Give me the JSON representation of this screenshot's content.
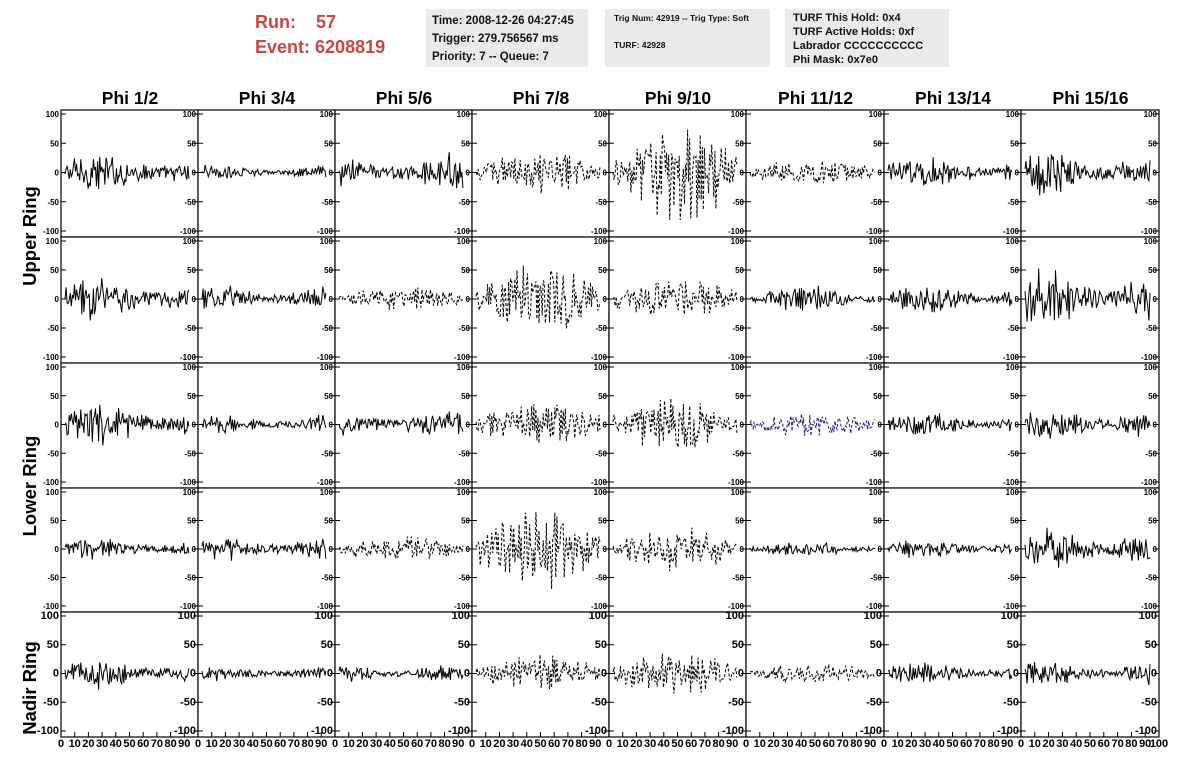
{
  "event_header": {
    "run_label": "Run:",
    "run_value": "57",
    "event_label": "Event:",
    "event_value": "6208819"
  },
  "time_box": {
    "time": "Time: 2008-12-26 04:27:45",
    "trigger": "Trigger: 279.756567 ms",
    "priority": "Priority: 7 -- Queue: 7"
  },
  "trig_box": {
    "trig": "Trig Num: 42919 -- Trig Type: Soft",
    "turf": "TURF: 42928"
  },
  "turf_box": {
    "this_hold": "TURF This Hold: 0x4",
    "active_holds": "TURF Active Holds: 0xf",
    "labrador": "Labrador CCCCCCCCCC",
    "phi_mask": "Phi Mask: 0x7e0"
  },
  "columns": [
    "Phi 1/2",
    "Phi 3/4",
    "Phi 5/6",
    "Phi 7/8",
    "Phi 9/10",
    "Phi 11/12",
    "Phi 13/14",
    "Phi 15/16"
  ],
  "row_groups": [
    "Upper Ring",
    "Lower Ring",
    "Nadir Ring"
  ],
  "y_ticks": [
    "100",
    "50",
    "0",
    "-50",
    "-100"
  ],
  "x_ticks": [
    "0",
    "10",
    "20",
    "30",
    "40",
    "50",
    "60",
    "70",
    "80",
    "90",
    "100"
  ],
  "colors": {
    "run_text": "#c44444",
    "box_bg": "#ebebeb",
    "trace": "#000000",
    "highlight_trace": "#1a1a8c"
  },
  "chart_data": {
    "type": "line",
    "title": "",
    "xlabel": "",
    "ylabel": "",
    "xlim": [
      0,
      100
    ],
    "ylim": [
      -100,
      100
    ],
    "grid": false,
    "panel_rows": 5,
    "panel_cols": 8,
    "amplitude": [
      [
        25,
        10,
        25,
        25,
        55,
        15,
        20,
        30
      ],
      [
        28,
        18,
        15,
        45,
        25,
        18,
        18,
        38
      ],
      [
        28,
        15,
        20,
        25,
        30,
        15,
        15,
        22
      ],
      [
        15,
        18,
        15,
        45,
        25,
        10,
        12,
        28
      ],
      [
        20,
        10,
        12,
        20,
        25,
        12,
        15,
        18
      ]
    ],
    "dashed": [
      [
        false,
        false,
        false,
        true,
        true,
        true,
        false,
        false
      ],
      [
        false,
        false,
        true,
        true,
        true,
        false,
        false,
        false
      ],
      [
        false,
        false,
        false,
        true,
        true,
        true,
        false,
        false
      ],
      [
        false,
        false,
        true,
        true,
        true,
        false,
        false,
        false
      ],
      [
        false,
        false,
        false,
        true,
        true,
        true,
        false,
        false
      ]
    ],
    "highlight": {
      "row": 2,
      "col": 5,
      "color": "#1a1a8c"
    }
  }
}
